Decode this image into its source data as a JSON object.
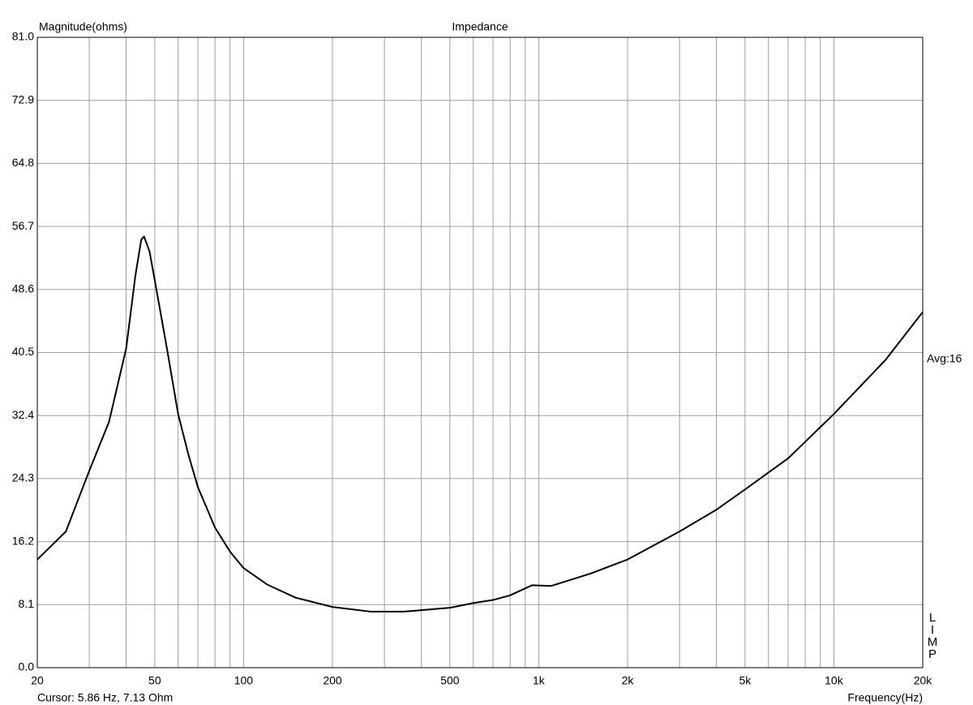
{
  "chart_data": {
    "type": "line",
    "title": "Impedance",
    "y_label": "Magnitude(ohms)",
    "x_label": "Frequency(Hz)",
    "status": "Cursor: 5.86 Hz, 7.13 Ohm",
    "annotation": "Avg:16",
    "app_letters": [
      "L",
      "I",
      "M",
      "P"
    ],
    "x_scale": "log",
    "grid": true,
    "xlim": [
      20,
      20000
    ],
    "xticks": [
      20,
      50,
      100,
      200,
      500,
      {
        "value": 1000,
        "label": "1k"
      },
      {
        "value": 2000,
        "label": "2k"
      },
      {
        "value": 5000,
        "label": "5k"
      },
      {
        "value": 10000,
        "label": "10k"
      },
      {
        "value": 20000,
        "label": "20k"
      }
    ],
    "xgrid": [
      30,
      40,
      60,
      70,
      80,
      90,
      300,
      400,
      600,
      700,
      800,
      900,
      3000,
      4000,
      6000,
      7000,
      8000,
      9000
    ],
    "ylim": [
      0,
      81
    ],
    "yticks": [
      {
        "value": 0,
        "label": "0.0"
      },
      8.1,
      16.2,
      24.3,
      32.4,
      40.5,
      48.6,
      56.7,
      64.8,
      72.9,
      {
        "value": 81,
        "label": "81.0"
      }
    ],
    "x": [
      20,
      25,
      30,
      35,
      40,
      43,
      45,
      46,
      48,
      50,
      55,
      60,
      65,
      70,
      80,
      90,
      100,
      120,
      150,
      200,
      270,
      350,
      500,
      600,
      700,
      800,
      950,
      1100,
      1500,
      2000,
      3000,
      4000,
      5000,
      7000,
      10000,
      15000,
      20000
    ],
    "series": [
      {
        "color": "#000000",
        "values": [
          13.9,
          17.5,
          25.3,
          31.6,
          41.0,
          50.4,
          55.0,
          55.4,
          53.5,
          49.8,
          41.0,
          32.6,
          27.4,
          23.2,
          18.0,
          14.9,
          12.8,
          10.7,
          9.0,
          7.8,
          7.2,
          7.2,
          7.7,
          8.3,
          8.7,
          9.3,
          10.6,
          10.5,
          12.1,
          13.9,
          17.5,
          20.3,
          22.9,
          26.9,
          32.6,
          39.6,
          45.7
        ]
      }
    ]
  }
}
